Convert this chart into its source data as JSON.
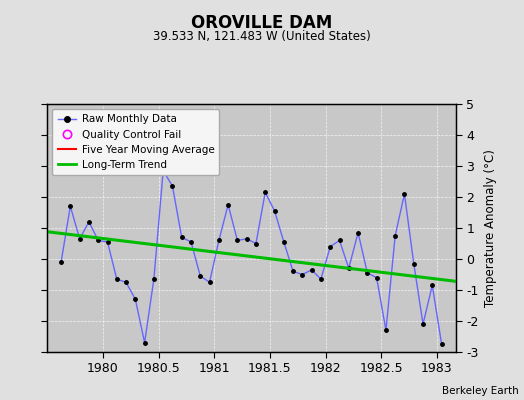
{
  "title": "OROVILLE DAM",
  "subtitle": "39.533 N, 121.483 W (United States)",
  "ylabel": "Temperature Anomaly (°C)",
  "credit": "Berkeley Earth",
  "xlim": [
    1979.5,
    1983.17
  ],
  "ylim": [
    -3,
    5
  ],
  "yticks": [
    -3,
    -2,
    -1,
    0,
    1,
    2,
    3,
    4,
    5
  ],
  "xticks": [
    1980,
    1980.5,
    1981,
    1981.5,
    1982,
    1982.5,
    1983
  ],
  "fig_bg_color": "#e0e0e0",
  "plot_bg_color": "#c8c8c8",
  "raw_x": [
    1979.625,
    1979.708,
    1979.792,
    1979.875,
    1979.958,
    1980.042,
    1980.125,
    1980.208,
    1980.292,
    1980.375,
    1980.458,
    1980.542,
    1980.625,
    1980.708,
    1980.792,
    1980.875,
    1980.958,
    1981.042,
    1981.125,
    1981.208,
    1981.292,
    1981.375,
    1981.458,
    1981.542,
    1981.625,
    1981.708,
    1981.792,
    1981.875,
    1981.958,
    1982.042,
    1982.125,
    1982.208,
    1982.292,
    1982.375,
    1982.458,
    1982.542,
    1982.625,
    1982.708,
    1982.792,
    1982.875,
    1982.958,
    1983.042
  ],
  "raw_y": [
    -0.1,
    1.7,
    0.65,
    1.2,
    0.6,
    0.55,
    -0.65,
    -0.75,
    -1.3,
    -2.7,
    -0.65,
    2.85,
    2.35,
    0.7,
    0.55,
    -0.55,
    -0.75,
    0.6,
    1.75,
    0.6,
    0.65,
    0.5,
    2.15,
    1.55,
    0.55,
    -0.4,
    -0.5,
    -0.35,
    -0.65,
    0.4,
    0.6,
    -0.3,
    0.85,
    -0.45,
    -0.6,
    -2.3,
    0.75,
    2.1,
    -0.15,
    -2.1,
    -0.85,
    -2.75
  ],
  "trend_x": [
    1979.5,
    1983.17
  ],
  "trend_y": [
    0.88,
    -0.72
  ],
  "raw_line_color": "#6666ff",
  "raw_dot_color": "#000000",
  "trend_color": "#00bb00",
  "mavg_color": "#ff0000",
  "legend_bg": "#f5f5f5",
  "grid_color": "#ffffff"
}
